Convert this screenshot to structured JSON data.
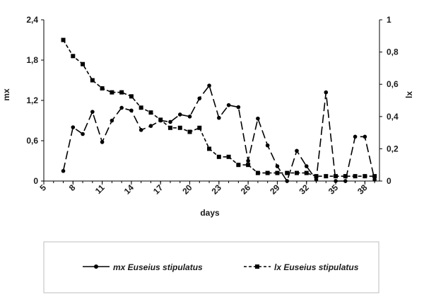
{
  "chart_data": {
    "type": "line",
    "xlabel": "days",
    "ylabel_left": "mx",
    "ylabel_right": "lx",
    "x_ticks": [
      "5",
      "8",
      "11",
      "14",
      "17",
      "20",
      "23",
      "26",
      "29",
      "32",
      "35",
      "38"
    ],
    "y_left_ticks": [
      "0",
      "0,6",
      "1,2",
      "1,8",
      "2,4"
    ],
    "y_right_ticks": [
      "0",
      "0,2",
      "0,4",
      "0,6",
      "0,8",
      "1"
    ],
    "xlim": [
      5,
      39.5
    ],
    "ylim_left": [
      0,
      2.4
    ],
    "ylim_right": [
      0,
      1
    ],
    "grid": false,
    "legend_position": "bottom",
    "series": [
      {
        "name": "mx Euseius stipulatus",
        "axis": "left",
        "marker": "circle",
        "line": "long-dash",
        "x": [
          7,
          8,
          9,
          10,
          11,
          12,
          13,
          14,
          15,
          16,
          17,
          18,
          19,
          20,
          21,
          22,
          23,
          24,
          25,
          26,
          27,
          28,
          29,
          30,
          31,
          32,
          33,
          34,
          35,
          36,
          37,
          38,
          39
        ],
        "y": [
          0.15,
          0.8,
          0.7,
          1.03,
          0.58,
          0.9,
          1.09,
          1.05,
          0.76,
          0.82,
          0.9,
          0.88,
          0.99,
          0.96,
          1.23,
          1.42,
          0.94,
          1.13,
          1.1,
          0.3,
          0.93,
          0.53,
          0.22,
          0.0,
          0.45,
          0.22,
          0.02,
          1.32,
          0.0,
          0.0,
          0.66,
          0.66,
          0.02
        ]
      },
      {
        "name": "lx Euseius stipulatus",
        "axis": "right",
        "marker": "square",
        "line": "short-dash",
        "x": [
          7,
          8,
          9,
          10,
          11,
          12,
          13,
          14,
          15,
          16,
          17,
          18,
          19,
          20,
          21,
          22,
          23,
          24,
          25,
          26,
          27,
          28,
          29,
          30,
          31,
          32,
          33,
          34,
          35,
          36,
          37,
          38,
          39
        ],
        "y": [
          0.875,
          0.775,
          0.725,
          0.625,
          0.575,
          0.55,
          0.55,
          0.525,
          0.455,
          0.425,
          0.38,
          0.33,
          0.33,
          0.305,
          0.33,
          0.2,
          0.15,
          0.15,
          0.1,
          0.1,
          0.05,
          0.05,
          0.05,
          0.05,
          0.05,
          0.05,
          0.03,
          0.03,
          0.03,
          0.03,
          0.03,
          0.03,
          0.03
        ]
      }
    ]
  }
}
